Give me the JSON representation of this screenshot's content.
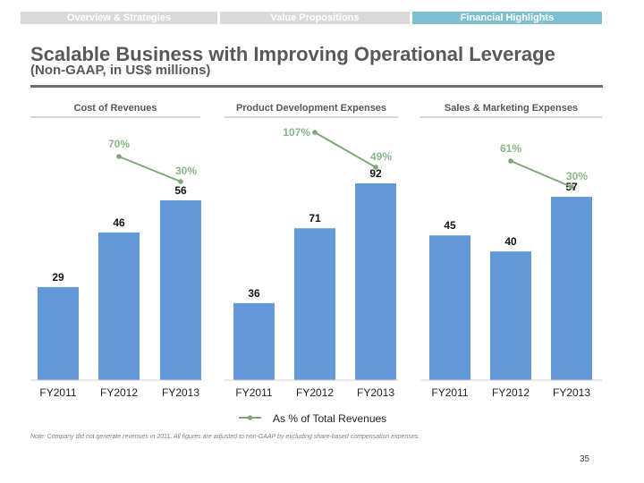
{
  "nav": {
    "tabs": [
      {
        "label": "Overview & Strategies",
        "active": false
      },
      {
        "label": "Value Propositions",
        "active": false
      },
      {
        "label": "Financial Highlights",
        "active": true
      }
    ]
  },
  "header": {
    "title": "Scalable Business with Improving Operational Leverage",
    "subtitle": "(Non-GAAP, in US$ millions)"
  },
  "colors": {
    "bar": "#6399d9",
    "line": "#7fa878",
    "pct_text": "#89b887",
    "active_tab": "#7fbfd2"
  },
  "chart_data": [
    {
      "type": "bar",
      "title": "Cost of Revenues",
      "categories": [
        "FY2011",
        "FY2012",
        "FY2013"
      ],
      "values": [
        29,
        46,
        56
      ],
      "value_labels": [
        "29",
        "46",
        "56"
      ],
      "line_series": {
        "name": "As % of Total Revenues",
        "points": [
          {
            "category": "FY2012",
            "value": 70,
            "label": "70%"
          },
          {
            "category": "FY2013",
            "value": 30,
            "label": "30%"
          }
        ]
      },
      "ylim": [
        0,
        56
      ]
    },
    {
      "type": "bar",
      "title": "Product Development Expenses",
      "categories": [
        "FY2011",
        "FY2012",
        "FY2013"
      ],
      "values": [
        36,
        71,
        92
      ],
      "value_labels": [
        "36",
        "71",
        "92"
      ],
      "line_series": {
        "name": "As % of Total Revenues",
        "points": [
          {
            "category": "FY2012",
            "value": 107,
            "label": "107%"
          },
          {
            "category": "FY2013",
            "value": 49,
            "label": "49%"
          }
        ]
      },
      "ylim": [
        0,
        92
      ]
    },
    {
      "type": "bar",
      "title": "Sales & Marketing Expenses",
      "categories": [
        "FY2011",
        "FY2012",
        "FY2013"
      ],
      "values": [
        45,
        40,
        57
      ],
      "value_labels": [
        "45",
        "40",
        "57"
      ],
      "line_series": {
        "name": "As % of Total Revenues",
        "points": [
          {
            "category": "FY2012",
            "value": 61,
            "label": "61%"
          },
          {
            "category": "FY2013",
            "value": 30,
            "label": "30%"
          }
        ]
      },
      "ylim": [
        0,
        57
      ]
    }
  ],
  "legend": {
    "label": "As % of Total Revenues",
    "placement": "bottom-center"
  },
  "footer": {
    "note": "Note:  Company did not generate revenues in 2011. All figures are adjusted to non-GAAP by excluding share-based compensation expenses.",
    "page_number": "35"
  }
}
